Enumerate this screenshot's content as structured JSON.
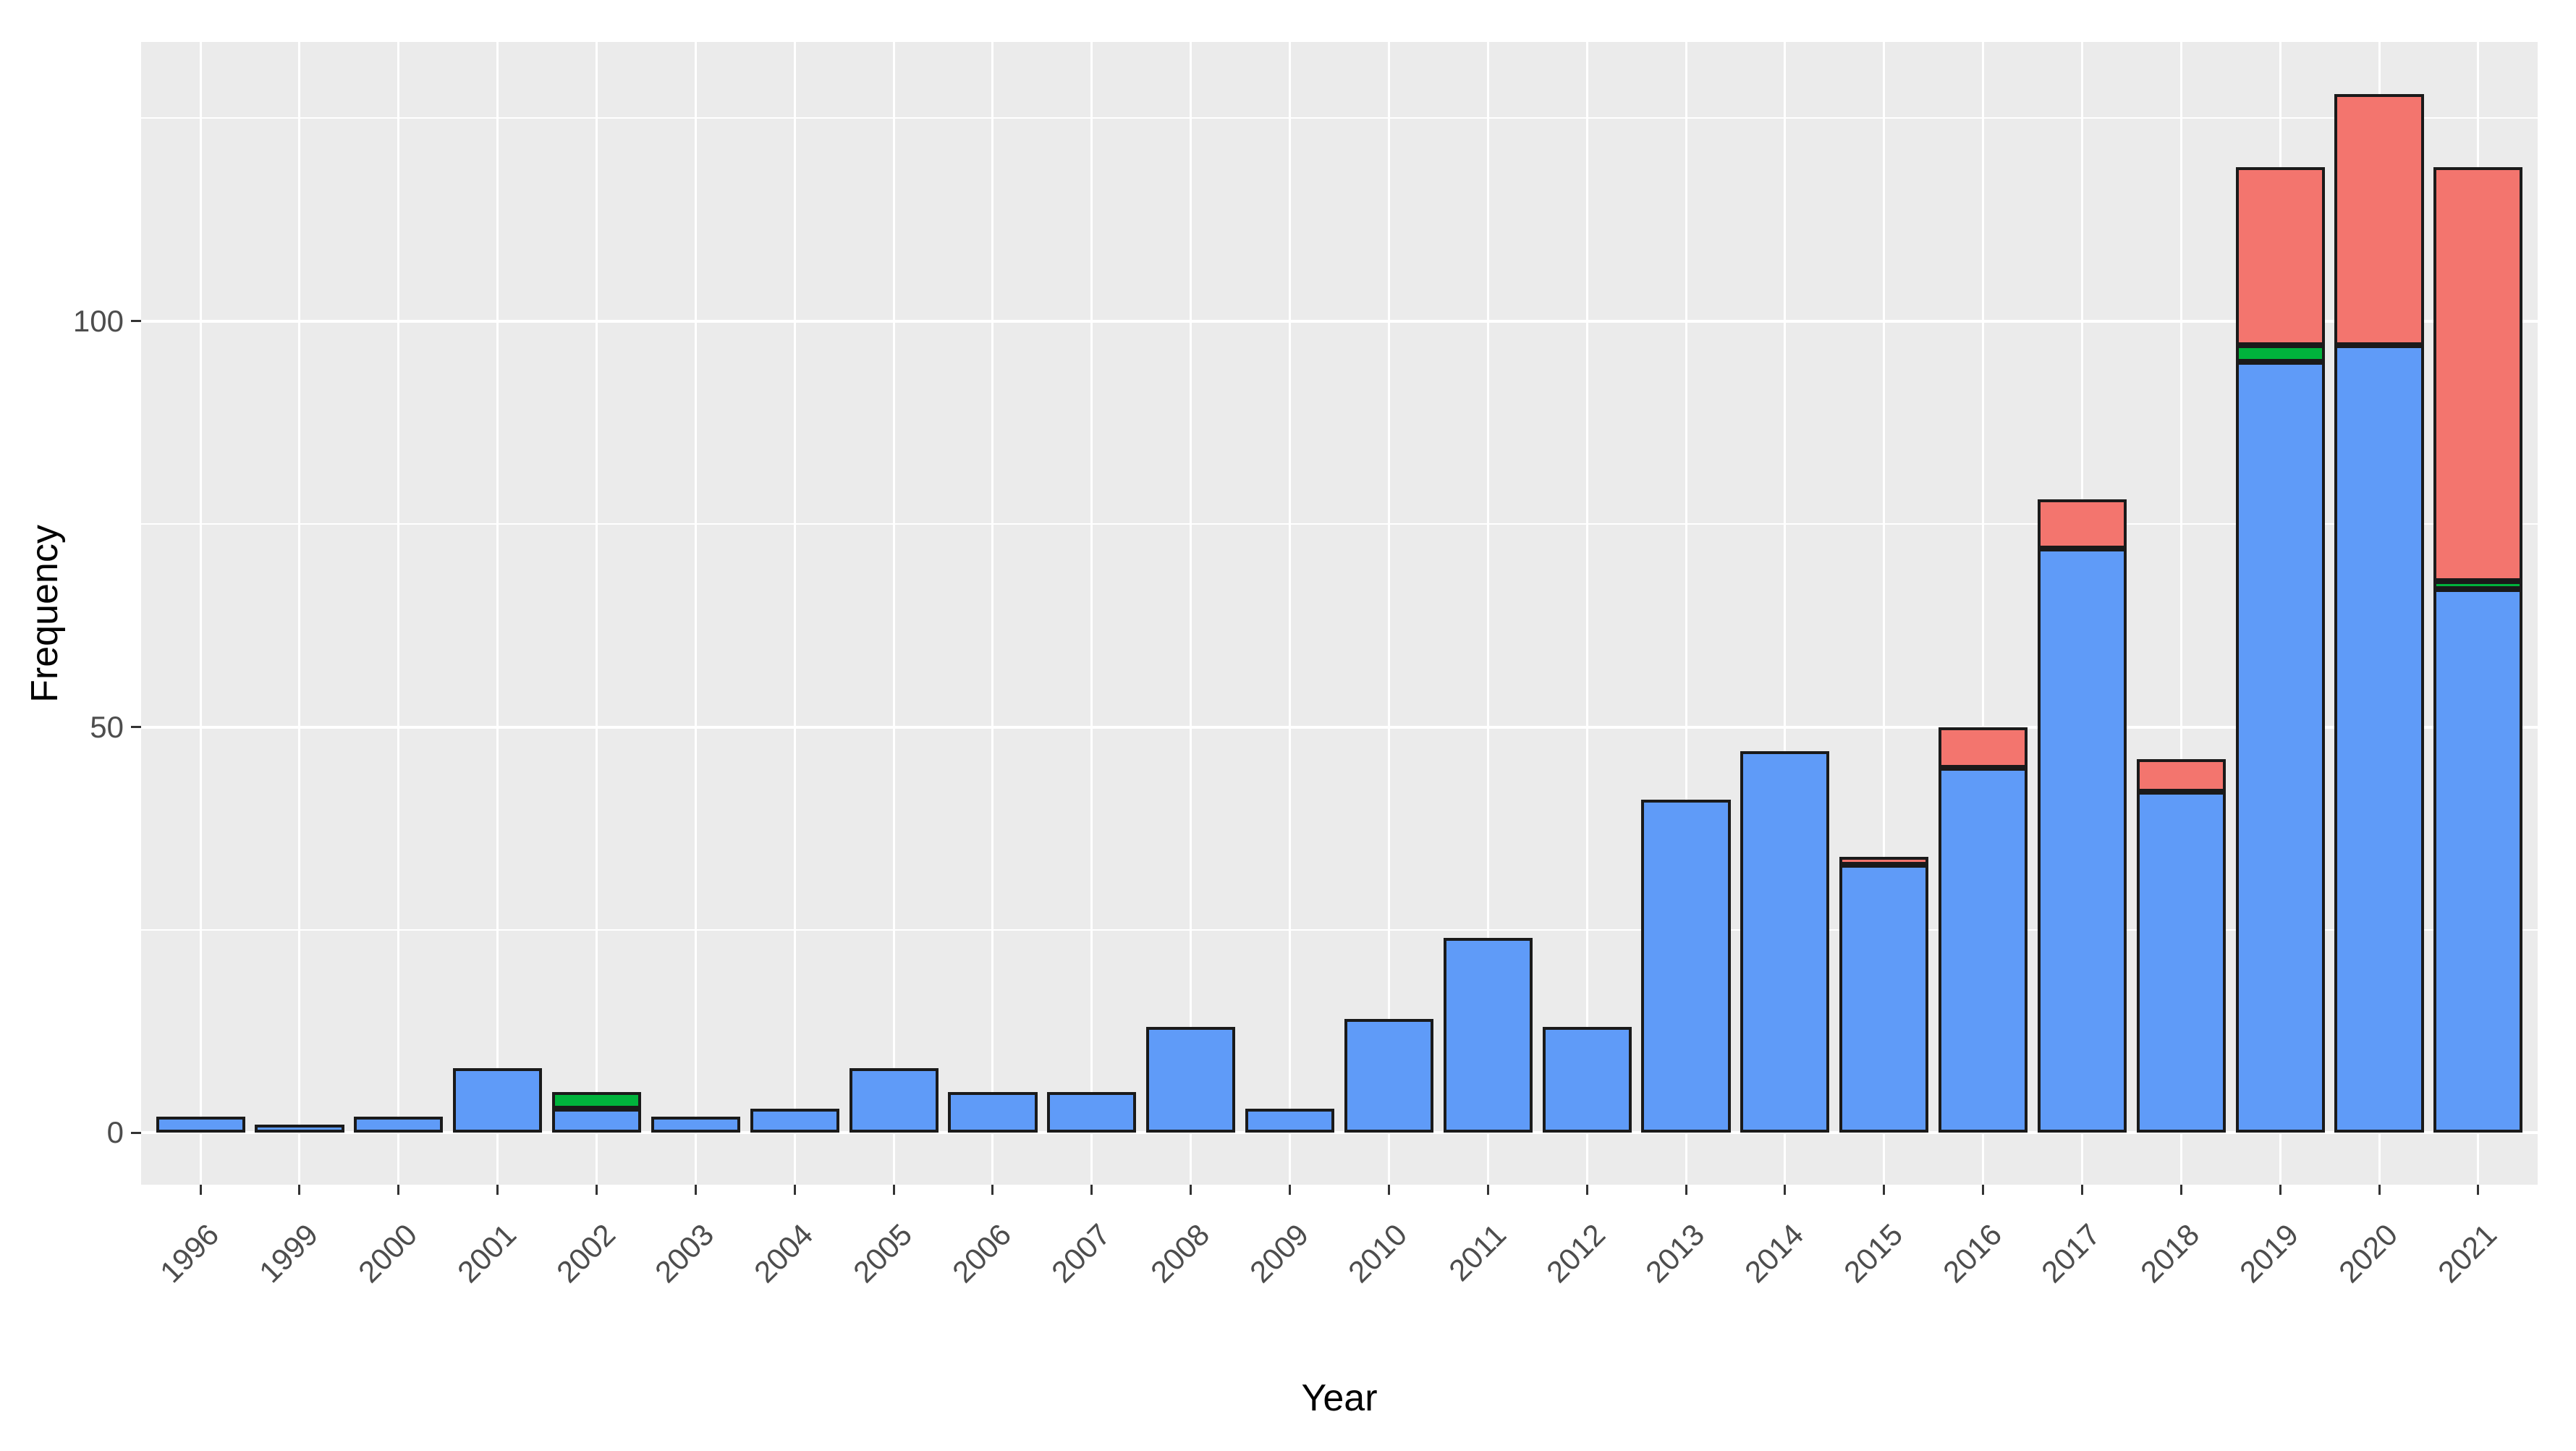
{
  "figure": {
    "background": "#FFFFFF",
    "panel_background": "#EBEBEB",
    "gridline_color": "#FFFFFF",
    "axis_text_color": "#4D4D4D",
    "axis_title_color": "#000000",
    "bar_border_color": "#1A1A1A"
  },
  "chart_data": {
    "type": "bar",
    "stacked": true,
    "title": "",
    "xlabel": "Year",
    "ylabel": "Frequency",
    "grid": true,
    "legend": "none",
    "categories": [
      "1996",
      "1999",
      "2000",
      "2001",
      "2002",
      "2003",
      "2004",
      "2005",
      "2006",
      "2007",
      "2008",
      "2009",
      "2010",
      "2011",
      "2012",
      "2013",
      "2014",
      "2015",
      "2016",
      "2017",
      "2018",
      "2019",
      "2020",
      "2021"
    ],
    "series": [
      {
        "name": "blue",
        "color": "#5F9BF8",
        "values": [
          2,
          1,
          2,
          8,
          3,
          2,
          3,
          8,
          5,
          5,
          13,
          3,
          14,
          24,
          13,
          41,
          47,
          33,
          45,
          72,
          42,
          95,
          97,
          67
        ]
      },
      {
        "name": "green",
        "color": "#00B33C",
        "values": [
          0,
          0,
          0,
          0,
          2,
          0,
          0,
          0,
          0,
          0,
          0,
          0,
          0,
          0,
          0,
          0,
          0,
          0,
          0,
          0,
          0,
          2,
          0,
          1
        ]
      },
      {
        "name": "red",
        "color": "#F3756E",
        "values": [
          0,
          0,
          0,
          0,
          0,
          0,
          0,
          0,
          0,
          0,
          0,
          0,
          0,
          0,
          0,
          0,
          0,
          1,
          5,
          6,
          4,
          22,
          31,
          51
        ]
      }
    ],
    "totals": [
      2,
      1,
      2,
      8,
      5,
      2,
      3,
      8,
      5,
      5,
      13,
      3,
      14,
      24,
      13,
      41,
      47,
      34,
      50,
      78,
      46,
      119,
      128,
      119
    ],
    "y_ticks": [
      0,
      50,
      100
    ],
    "y_minor_ticks": [
      25,
      75,
      125
    ],
    "ylim": [
      0,
      134
    ]
  }
}
